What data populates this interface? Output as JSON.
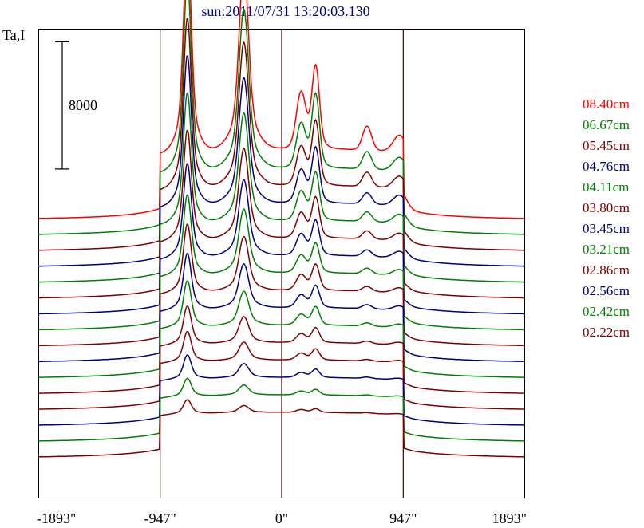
{
  "chart_data": {
    "type": "line",
    "title": "sun:2011/07/31 13:20:03.130",
    "ylabel": "Ta,I",
    "xlabel": "",
    "x_ticks": [
      "-1893\"",
      "-947\"",
      "0\"",
      "947\"",
      "1893\""
    ],
    "x_tick_values": [
      -1893,
      -947,
      0,
      947,
      1893
    ],
    "xlim": [
      -1893,
      1893
    ],
    "vertical_lines": [
      -947,
      0,
      947
    ],
    "scale_bar": {
      "label": "8000",
      "value": 8000
    },
    "legend_position": "right",
    "series": [
      {
        "name": "08.40cm",
        "color": "#ff0000",
        "offset": 0
      },
      {
        "name": "06.67cm",
        "color": "#008000",
        "offset": -1000
      },
      {
        "name": "05.45cm",
        "color": "#800000",
        "offset": -2000
      },
      {
        "name": "04.76cm",
        "color": "#000080",
        "offset": -3000
      },
      {
        "name": "04.11cm",
        "color": "#008000",
        "offset": -4000
      },
      {
        "name": "03.80cm",
        "color": "#800000",
        "offset": -5000
      },
      {
        "name": "03.45cm",
        "color": "#000080",
        "offset": -6000
      },
      {
        "name": "03.21cm",
        "color": "#008000",
        "offset": -7000
      },
      {
        "name": "02.86cm",
        "color": "#800000",
        "offset": -8000
      },
      {
        "name": "02.56cm",
        "color": "#000080",
        "offset": -9000
      },
      {
        "name": "02.42cm",
        "color": "#008000",
        "offset": -10000
      },
      {
        "name": "02.22cm",
        "color": "#800000",
        "offset": -11000
      },
      {
        "name": "",
        "color": "#800000",
        "offset": -12000
      },
      {
        "name": "",
        "color": "#000080",
        "offset": -13000
      },
      {
        "name": "",
        "color": "#008000",
        "offset": -14000
      },
      {
        "name": "",
        "color": "#800000",
        "offset": -15000
      }
    ],
    "profiles": [
      {
        "disk": 4500,
        "p1": 10500,
        "p2": 9000,
        "p3": 3000,
        "p4": 4500,
        "p5": 1500,
        "p6": 1100
      },
      {
        "disk": 4300,
        "p1": 9500,
        "p2": 8000,
        "p3": 2300,
        "p4": 4000,
        "p5": 1100,
        "p6": 900
      },
      {
        "disk": 4200,
        "p1": 8500,
        "p2": 7200,
        "p3": 2000,
        "p4": 3500,
        "p5": 900,
        "p6": 800
      },
      {
        "disk": 4100,
        "p1": 7500,
        "p2": 6300,
        "p3": 1700,
        "p4": 3000,
        "p5": 700,
        "p6": 700
      },
      {
        "disk": 4000,
        "p1": 6500,
        "p2": 5400,
        "p3": 1500,
        "p4": 2600,
        "p5": 600,
        "p6": 600
      },
      {
        "disk": 3900,
        "p1": 5500,
        "p2": 4500,
        "p3": 1300,
        "p4": 2200,
        "p5": 500,
        "p6": 500
      },
      {
        "disk": 3800,
        "p1": 4700,
        "p2": 3800,
        "p3": 1100,
        "p4": 1900,
        "p5": 400,
        "p6": 450
      },
      {
        "disk": 3700,
        "p1": 4000,
        "p2": 3200,
        "p3": 900,
        "p4": 1600,
        "p5": 350,
        "p6": 400
      },
      {
        "disk": 3600,
        "p1": 3400,
        "p2": 2700,
        "p3": 800,
        "p4": 1400,
        "p5": 300,
        "p6": 350
      },
      {
        "disk": 3500,
        "p1": 2800,
        "p2": 2200,
        "p3": 650,
        "p4": 1200,
        "p5": 250,
        "p6": 300
      },
      {
        "disk": 3400,
        "p1": 2300,
        "p2": 1700,
        "p3": 550,
        "p4": 1000,
        "p5": 200,
        "p6": 250
      },
      {
        "disk": 3300,
        "p1": 1900,
        "p2": 1300,
        "p3": 450,
        "p4": 800,
        "p5": 150,
        "p6": 200
      },
      {
        "disk": 3200,
        "p1": 1500,
        "p2": 900,
        "p3": 350,
        "p4": 600,
        "p5": 100,
        "p6": 150
      },
      {
        "disk": 3100,
        "p1": 1200,
        "p2": 700,
        "p3": 250,
        "p4": 450,
        "p5": 80,
        "p6": 120
      },
      {
        "disk": 3000,
        "p1": 900,
        "p2": 500,
        "p3": 200,
        "p4": 300,
        "p5": 60,
        "p6": 100
      },
      {
        "disk": 2900,
        "p1": 700,
        "p2": 350,
        "p3": 150,
        "p4": 200,
        "p5": 40,
        "p6": 80
      }
    ],
    "baseline": 0,
    "y_top": 12000,
    "y_bottom": -17500
  }
}
